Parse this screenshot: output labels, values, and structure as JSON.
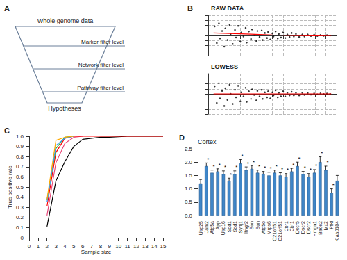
{
  "diagram": {
    "panel": "A",
    "top": "Whole genome data",
    "levels": [
      "Marker filter level",
      "Network filter level",
      "Pathway filter level"
    ],
    "bottom": "Hypotheses"
  },
  "chart_data": [
    {
      "panel": "B",
      "type": "scatter",
      "title": "RAW DATA",
      "color": "#000000",
      "x": [
        0.6,
        0.8,
        1.0,
        1.1,
        1.3,
        1.5,
        1.6,
        1.8,
        2.0,
        2.1,
        2.3,
        2.5,
        2.6,
        2.8,
        3.0,
        3.1,
        3.3,
        3.5,
        3.6,
        3.8,
        4.0,
        4.1,
        4.3,
        4.5,
        4.6,
        4.8,
        5.0,
        5.1,
        5.3,
        5.5,
        5.6,
        5.8,
        6.0,
        6.1,
        6.3,
        6.5,
        6.6,
        6.8,
        7.0,
        7.2,
        7.4,
        7.6,
        7.8,
        8.0,
        8.2,
        8.5,
        8.8,
        9.0,
        9.3,
        9.6,
        9.9,
        10.2,
        10.5,
        10.8,
        11.1,
        11.4
      ],
      "values": [
        1.8,
        -1.5,
        2.4,
        -0.6,
        0.9,
        -2.2,
        1.4,
        -0.9,
        2.1,
        0.3,
        -1.7,
        1.1,
        -0.4,
        1.9,
        -1.2,
        0.6,
        -0.2,
        1.5,
        -1.4,
        0.8,
        -0.7,
        1.2,
        0.1,
        -1.1,
        0.9,
        -0.3,
        1.0,
        -0.9,
        0.5,
        -0.5,
        0.7,
        -0.8,
        0.4,
        -0.2,
        0.8,
        -0.6,
        0.3,
        -0.4,
        0.6,
        -0.5,
        0.2,
        -0.3,
        0.5,
        -0.2,
        0.3,
        -0.3,
        0.2,
        -0.2,
        0.2,
        -0.1,
        0.15,
        -0.1,
        0.1,
        -0.05,
        0.05,
        0.0
      ],
      "trend": {
        "color": "#ff0000",
        "x": [
          0.5,
          2,
          4,
          6,
          8,
          10,
          11.5
        ],
        "values": [
          0.5,
          0.4,
          0.25,
          0.1,
          0,
          -0.05,
          0
        ]
      },
      "xlim": [
        0,
        12
      ],
      "xticks": [
        0,
        1,
        2,
        3,
        4,
        5,
        6,
        7,
        8,
        9,
        10,
        11,
        12
      ],
      "ylim": [
        -4,
        4
      ],
      "yticks": [
        -4,
        -3,
        -2,
        -1,
        0,
        1,
        2,
        3,
        4
      ],
      "grid": true,
      "tick_labels": false
    },
    {
      "panel": "B",
      "type": "scatter",
      "title": "LOWESS",
      "color": "#000000",
      "x": [
        0.6,
        0.8,
        1.0,
        1.1,
        1.3,
        1.5,
        1.6,
        1.8,
        2.0,
        2.1,
        2.3,
        2.5,
        2.6,
        2.8,
        3.0,
        3.1,
        3.3,
        3.5,
        3.6,
        3.8,
        4.0,
        4.1,
        4.3,
        4.5,
        4.6,
        4.8,
        5.0,
        5.1,
        5.3,
        5.5,
        5.6,
        5.8,
        6.0,
        6.1,
        6.3,
        6.5,
        6.6,
        6.8,
        7.0,
        7.2,
        7.4,
        7.6,
        7.8,
        8.0,
        8.2,
        8.5,
        8.8,
        9.0,
        9.3,
        9.6,
        9.9,
        10.2,
        10.5,
        10.8,
        11.1,
        11.4
      ],
      "values": [
        1.5,
        -1.8,
        2.1,
        -0.9,
        0.6,
        -2.4,
        1.1,
        -1.2,
        1.8,
        0.0,
        -2.0,
        0.8,
        -0.7,
        1.6,
        -1.5,
        0.3,
        -0.5,
        1.2,
        -1.6,
        0.5,
        -1.0,
        0.9,
        -0.2,
        -1.3,
        0.6,
        -0.5,
        0.8,
        -1.0,
        0.3,
        -0.7,
        0.5,
        -0.9,
        0.3,
        -0.3,
        0.7,
        -0.7,
        0.2,
        -0.5,
        0.5,
        -0.5,
        0.2,
        -0.3,
        0.4,
        -0.3,
        0.2,
        -0.3,
        0.2,
        -0.2,
        0.15,
        -0.15,
        0.1,
        -0.1,
        0.1,
        -0.05,
        0.05,
        0.0
      ],
      "trend": {
        "color": "#ff0000",
        "x": [
          0.5,
          11.5
        ],
        "values": [
          0,
          0
        ]
      },
      "xlim": [
        0,
        12
      ],
      "xticks": [
        0,
        1,
        2,
        3,
        4,
        5,
        6,
        7,
        8,
        9,
        10,
        11,
        12
      ],
      "ylim": [
        -4,
        4
      ],
      "yticks": [
        -4,
        -3,
        -2,
        -1,
        0,
        1,
        2,
        3,
        4
      ],
      "grid": true,
      "tick_labels": false
    },
    {
      "panel": "C",
      "type": "line",
      "x_label": "Sample size",
      "y_label": "True positive rate",
      "xlim": [
        0,
        15
      ],
      "xticks": [
        0,
        1,
        2,
        3,
        4,
        5,
        6,
        7,
        8,
        9,
        10,
        11,
        12,
        13,
        14,
        15
      ],
      "ylim": [
        0,
        1
      ],
      "yticks": [
        0,
        0.1,
        0.2,
        0.3,
        0.4,
        0.5,
        0.6,
        0.7,
        0.8,
        0.9,
        {
          "value": 1,
          "label": "1.0"
        }
      ],
      "grid": false,
      "series": [
        {
          "color": "#000000",
          "x": [
            2,
            3,
            4,
            5,
            6,
            7,
            8,
            9,
            10,
            11,
            12,
            13,
            14,
            15
          ],
          "values": [
            0.11,
            0.56,
            0.75,
            0.9,
            0.97,
            0.98,
            0.99,
            0.99,
            0.995,
            1,
            1,
            1,
            1,
            1
          ]
        },
        {
          "color": "#e8477a",
          "x": [
            2,
            3,
            4,
            5,
            6
          ],
          "values": [
            0.22,
            0.74,
            0.93,
            0.99,
            1.0
          ]
        },
        {
          "color": "#ff0000",
          "x": [
            2,
            3,
            4,
            5,
            15
          ],
          "values": [
            0.31,
            0.84,
            0.98,
            1.0,
            1.0
          ]
        },
        {
          "color": "#33aa33",
          "x": [
            2,
            3,
            4,
            5
          ],
          "values": [
            0.37,
            0.88,
            0.99,
            1.0
          ]
        },
        {
          "color": "#3399ff",
          "x": [
            2,
            3,
            4,
            5
          ],
          "values": [
            0.35,
            0.91,
            0.98,
            1.0
          ]
        },
        {
          "color": "#ffaa00",
          "x": [
            2,
            3,
            4,
            5
          ],
          "values": [
            0.38,
            0.96,
            0.99,
            1.0
          ]
        }
      ]
    },
    {
      "panel": "D",
      "type": "bar",
      "title": "Cortex",
      "color": "#3f86c8",
      "categories": [
        "Usp25",
        "Jam2",
        "Atp5a",
        "App",
        "Usp16",
        "Sod1",
        "Sod1",
        "Synj1",
        "Ifngr2",
        "Son",
        "Son",
        "Atp5o",
        "Mrps6",
        "C21orf51",
        "C21orf51",
        "Cbr1",
        "Cbr1",
        "Dscr5",
        "Dscr2",
        "Dscr2",
        "Hmgn1",
        "Bace2",
        "Mx2",
        "Pfkl",
        "Kiaa0184"
      ],
      "values": [
        1.2,
        1.85,
        1.6,
        1.65,
        1.55,
        1.3,
        1.55,
        1.95,
        1.7,
        1.75,
        1.6,
        1.55,
        1.5,
        1.6,
        1.5,
        1.45,
        1.65,
        1.85,
        1.55,
        1.45,
        1.6,
        2.0,
        1.7,
        0.85,
        1.3
      ],
      "errors": [
        0.15,
        0.12,
        0.1,
        0.1,
        0.12,
        0.1,
        0.12,
        0.15,
        0.12,
        0.12,
        0.1,
        0.1,
        0.12,
        0.1,
        0.1,
        0.12,
        0.12,
        0.15,
        0.1,
        0.12,
        0.12,
        0.2,
        0.15,
        0.15,
        0.2
      ],
      "annotations": [
        null,
        "*",
        "*",
        "*",
        "*",
        "*",
        "*",
        "*",
        "*",
        "*",
        "*",
        "*",
        "*",
        "*",
        "*",
        "*",
        "*",
        "*",
        "*",
        "*",
        "*",
        "*",
        "*",
        "*",
        null
      ],
      "ylim": [
        0,
        2.5
      ],
      "yticks": [
        {
          "value": 0,
          "label": "0.0"
        },
        0.5,
        {
          "value": 1,
          "label": "1.0"
        },
        1.5,
        {
          "value": 2,
          "label": "2.0"
        },
        2.5
      ],
      "grid": false
    }
  ]
}
